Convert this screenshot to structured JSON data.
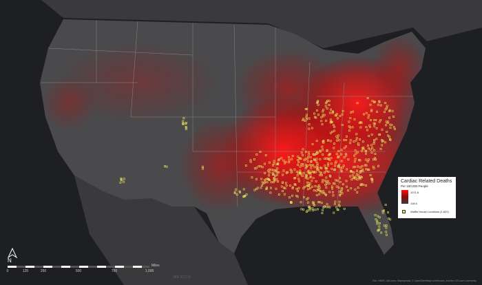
{
  "legend": {
    "title": "Cardiac Related Deaths",
    "subtitle": "Per 100,000 People",
    "high_value": "1071.6",
    "low_value": "118.6",
    "points_label": "Waffle House Locations (1,822)"
  },
  "north_label": "N",
  "scale_bar": {
    "ticks": [
      "0",
      "125",
      "250",
      "500",
      "750",
      "1,000"
    ],
    "unit": "Miles"
  },
  "country_label": "MEXICO",
  "credits": "Esri, HERE, DeLorme, MapmyIndia, © OpenStreetMap contributors, and the GIS user community",
  "colors": {
    "ocean": "#1e1f23",
    "land": "#4a4a4c",
    "heat": "#ff1a1a",
    "points": "#e8e060"
  }
}
